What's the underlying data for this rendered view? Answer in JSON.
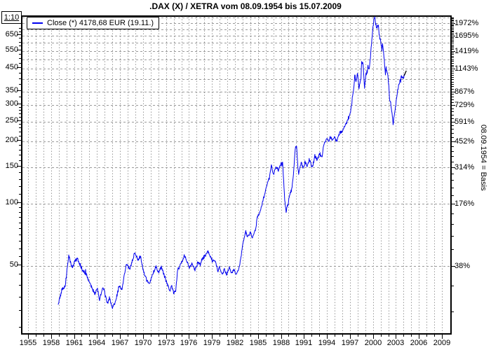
{
  "title": ".DAX (X) / XETRA vom 08.09.1954 bis 15.07.2009",
  "scale_box_label": "1:10",
  "legend": {
    "series_label": "Close (*) 4178,68 EUR (19.11.)"
  },
  "right_axis_note": "08.09.1954 = Basis",
  "colors": {
    "line": "#0000ee",
    "grid": "#999999",
    "axis": "#000000",
    "background": "#ffffff",
    "text": "#000000",
    "end_marker": "#000000"
  },
  "chart_data": {
    "type": "line",
    "title": ".DAX (X) / XETRA vom 08.09.1954 bis 15.07.2009",
    "grid": true,
    "legend_position": "top-left",
    "x_axis": {
      "unit": "year",
      "range": [
        1954.1,
        2010.2
      ],
      "tick_years": [
        1955,
        1958,
        1961,
        1964,
        1967,
        1970,
        1973,
        1976,
        1979,
        1982,
        1985,
        1988,
        1991,
        1994,
        1997,
        2000,
        2003,
        2006,
        2009
      ]
    },
    "y_axis_left": {
      "scale": "log",
      "note": "1:10 (displayed value x10 = index points)",
      "ticks": [
        650,
        550,
        450,
        350,
        300,
        250,
        200,
        150,
        100,
        50
      ],
      "range": [
        23,
        800
      ]
    },
    "y_axis_right": {
      "unit": "%",
      "note": "08.09.1954 = Basis",
      "step_value": 49.3,
      "gridline_steps": 16,
      "labels": [
        {
          "k": 15,
          "label": "1972%"
        },
        {
          "k": 13,
          "label": "1695%"
        },
        {
          "k": 11,
          "label": "1419%"
        },
        {
          "k": 9,
          "label": "1143%"
        },
        {
          "k": 7,
          "label": "867%"
        },
        {
          "k": 6,
          "label": "729%"
        },
        {
          "k": 5,
          "label": "591%"
        },
        {
          "k": 4,
          "label": "452%"
        },
        {
          "k": 3,
          "label": "314%"
        },
        {
          "k": 2,
          "label": "176%"
        },
        {
          "k": 1,
          "label": "38%"
        }
      ]
    },
    "series": [
      {
        "name": "Close",
        "last_value_label": "4178,68 EUR (19.11.)",
        "points": [
          [
            1958.93,
            32.0
          ],
          [
            1959.39,
            37.5
          ],
          [
            1959.85,
            39.6
          ],
          [
            1960.31,
            55.3
          ],
          [
            1960.77,
            48.1
          ],
          [
            1961.13,
            52.4
          ],
          [
            1961.41,
            53.2
          ],
          [
            1961.86,
            49.2
          ],
          [
            1962.14,
            46.3
          ],
          [
            1962.6,
            44.9
          ],
          [
            1963.05,
            40.5
          ],
          [
            1963.42,
            38.4
          ],
          [
            1963.69,
            36.0
          ],
          [
            1964.06,
            38.2
          ],
          [
            1964.33,
            33.8
          ],
          [
            1964.79,
            38.9
          ],
          [
            1965.07,
            36.0
          ],
          [
            1965.34,
            32.5
          ],
          [
            1965.62,
            34.6
          ],
          [
            1966.02,
            30.8
          ],
          [
            1966.35,
            32.7
          ],
          [
            1966.62,
            35.9
          ],
          [
            1966.9,
            39.8
          ],
          [
            1967.26,
            38.2
          ],
          [
            1967.81,
            50.4
          ],
          [
            1968.27,
            47.3
          ],
          [
            1968.73,
            54.1
          ],
          [
            1969.0,
            56.6
          ],
          [
            1969.37,
            52.4
          ],
          [
            1969.64,
            55.3
          ],
          [
            1970.1,
            45.5
          ],
          [
            1970.47,
            42.1
          ],
          [
            1970.83,
            40.5
          ],
          [
            1971.2,
            43.8
          ],
          [
            1971.47,
            47.3
          ],
          [
            1971.75,
            49.2
          ],
          [
            1972.02,
            45.5
          ],
          [
            1972.39,
            48.4
          ],
          [
            1972.75,
            44.2
          ],
          [
            1973.12,
            40.5
          ],
          [
            1973.49,
            37.5
          ],
          [
            1973.76,
            38.9
          ],
          [
            1974.04,
            36.3
          ],
          [
            1974.31,
            38.4
          ],
          [
            1974.49,
            46.6
          ],
          [
            1974.77,
            49.2
          ],
          [
            1974.95,
            50.4
          ],
          [
            1975.22,
            53.2
          ],
          [
            1975.41,
            55.3
          ],
          [
            1975.68,
            52.0
          ],
          [
            1976.05,
            48.4
          ],
          [
            1976.32,
            50.4
          ],
          [
            1976.6,
            49.2
          ],
          [
            1976.78,
            47.3
          ],
          [
            1977.15,
            51.2
          ],
          [
            1977.42,
            50.0
          ],
          [
            1977.7,
            52.4
          ],
          [
            1977.97,
            54.5
          ],
          [
            1978.25,
            56.6
          ],
          [
            1978.52,
            57.5
          ],
          [
            1978.8,
            54.1
          ],
          [
            1979.07,
            52.0
          ],
          [
            1979.44,
            52.4
          ],
          [
            1979.71,
            46.6
          ],
          [
            1979.99,
            48.4
          ],
          [
            1980.35,
            44.5
          ],
          [
            1980.63,
            47.3
          ],
          [
            1980.9,
            44.9
          ],
          [
            1981.27,
            48.4
          ],
          [
            1981.54,
            45.5
          ],
          [
            1981.82,
            47.3
          ],
          [
            1982.18,
            44.9
          ],
          [
            1982.46,
            47.3
          ],
          [
            1982.64,
            50.4
          ],
          [
            1983.0,
            61.3
          ],
          [
            1983.37,
            72.7
          ],
          [
            1983.64,
            68.4
          ],
          [
            1984.01,
            71.0
          ],
          [
            1984.28,
            67.3
          ],
          [
            1984.65,
            72.7
          ],
          [
            1984.92,
            85.0
          ],
          [
            1985.2,
            88.4
          ],
          [
            1985.56,
            99.3
          ],
          [
            1985.84,
            107.4
          ],
          [
            1986.2,
            123.7
          ],
          [
            1986.48,
            130.5
          ],
          [
            1986.75,
            150.1
          ],
          [
            1987.03,
            137.8
          ],
          [
            1987.39,
            148.8
          ],
          [
            1987.67,
            142.2
          ],
          [
            1987.94,
            153.0
          ],
          [
            1988.21,
            155.1
          ],
          [
            1988.49,
            103.3
          ],
          [
            1988.67,
            90.5
          ],
          [
            1988.94,
            99.3
          ],
          [
            1989.13,
            109.1
          ],
          [
            1989.4,
            116.2
          ],
          [
            1989.58,
            130.5
          ],
          [
            1989.86,
            181.2
          ],
          [
            1990.04,
            188.5
          ],
          [
            1990.22,
            144.4
          ],
          [
            1990.31,
            137.8
          ],
          [
            1990.49,
            148.8
          ],
          [
            1990.68,
            155.1
          ],
          [
            1990.95,
            146.6
          ],
          [
            1991.13,
            158.7
          ],
          [
            1991.41,
            148.8
          ],
          [
            1991.68,
            161.2
          ],
          [
            1991.96,
            151.4
          ],
          [
            1992.14,
            151.0
          ],
          [
            1992.42,
            167.7
          ],
          [
            1992.69,
            161.2
          ],
          [
            1993.06,
            171.7
          ],
          [
            1993.33,
            164.9
          ],
          [
            1993.6,
            190.0
          ],
          [
            1993.97,
            203.5
          ],
          [
            1994.24,
            195.8
          ],
          [
            1994.42,
            208.3
          ],
          [
            1994.7,
            200.4
          ],
          [
            1994.97,
            208.3
          ],
          [
            1995.15,
            200.4
          ],
          [
            1995.33,
            200.4
          ],
          [
            1995.7,
            221.3
          ],
          [
            1995.97,
            216.4
          ],
          [
            1996.25,
            234.4
          ],
          [
            1996.52,
            243.5
          ],
          [
            1996.8,
            253.0
          ],
          [
            1997.07,
            274.0
          ],
          [
            1997.35,
            320.4
          ],
          [
            1997.53,
            360.4
          ],
          [
            1997.62,
            414.4
          ],
          [
            1997.8,
            384.0
          ],
          [
            1997.99,
            427.4
          ],
          [
            1998.17,
            354.7
          ],
          [
            1998.44,
            396.1
          ],
          [
            1998.53,
            481.3
          ],
          [
            1998.72,
            462.4
          ],
          [
            1998.9,
            360.4
          ],
          [
            1999.08,
            405.4
          ],
          [
            1999.35,
            455.2
          ],
          [
            1999.54,
            438.1
          ],
          [
            1999.81,
            584.0
          ],
          [
            1999.9,
            646.4
          ],
          [
            2000.08,
            744.6
          ],
          [
            2000.26,
            798.0
          ],
          [
            2000.35,
            739.0
          ],
          [
            2000.54,
            698.0
          ],
          [
            2000.72,
            727.4
          ],
          [
            2000.81,
            656.1
          ],
          [
            2000.99,
            597.4
          ],
          [
            2001.17,
            553.4
          ],
          [
            2001.26,
            588.4
          ],
          [
            2001.44,
            511.3
          ],
          [
            2001.63,
            414.4
          ],
          [
            2001.72,
            448.1
          ],
          [
            2001.9,
            427.4
          ],
          [
            2002.08,
            366.0
          ],
          [
            2002.17,
            315.2
          ],
          [
            2002.35,
            296.3
          ],
          [
            2002.54,
            259.4
          ],
          [
            2002.63,
            239.9
          ],
          [
            2002.72,
            253.0
          ],
          [
            2002.81,
            267.2
          ],
          [
            2002.99,
            296.3
          ],
          [
            2003.08,
            320.4
          ],
          [
            2003.26,
            354.7
          ],
          [
            2003.44,
            374.0
          ],
          [
            2003.53,
            389.7
          ],
          [
            2003.72,
            405.4
          ],
          [
            2003.9,
            401.0
          ],
          [
            2004.08,
            417.9
          ]
        ]
      }
    ]
  }
}
